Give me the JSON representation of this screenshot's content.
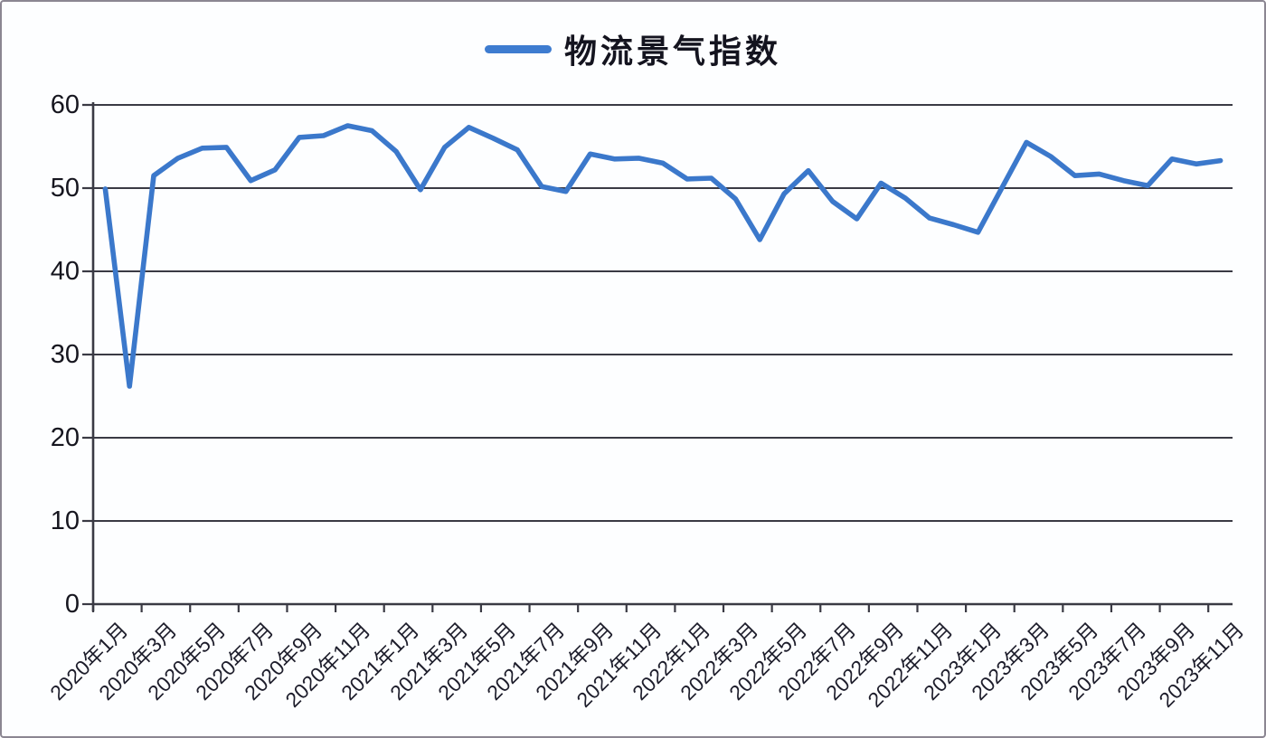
{
  "legend": {
    "label": "物流景气指数"
  },
  "chart_data": {
    "type": "line",
    "title": "",
    "series": [
      {
        "name": "物流景气指数",
        "values": [
          49.9,
          26.2,
          51.5,
          53.6,
          54.8,
          54.9,
          50.9,
          52.2,
          56.1,
          56.3,
          57.5,
          56.9,
          54.4,
          49.8,
          54.9,
          57.3,
          56.0,
          54.6,
          50.2,
          49.6,
          54.1,
          53.5,
          53.6,
          53.0,
          51.1,
          51.2,
          48.7,
          43.8,
          49.3,
          52.1,
          48.4,
          46.3,
          50.6,
          48.8,
          46.4,
          45.6,
          44.7,
          50.1,
          55.5,
          53.8,
          51.5,
          51.7,
          50.9,
          50.3,
          53.5,
          52.9,
          53.3
        ]
      }
    ],
    "x": [
      "2020年1月",
      "2020年2月",
      "2020年3月",
      "2020年4月",
      "2020年5月",
      "2020年6月",
      "2020年7月",
      "2020年8月",
      "2020年9月",
      "2020年10月",
      "2020年11月",
      "2020年12月",
      "2021年1月",
      "2021年2月",
      "2021年3月",
      "2021年4月",
      "2021年5月",
      "2021年6月",
      "2021年7月",
      "2021年8月",
      "2021年9月",
      "2021年10月",
      "2021年11月",
      "2021年12月",
      "2022年1月",
      "2022年2月",
      "2022年3月",
      "2022年4月",
      "2022年5月",
      "2022年6月",
      "2022年7月",
      "2022年8月",
      "2022年9月",
      "2022年10月",
      "2022年11月",
      "2022年12月",
      "2023年1月",
      "2023年2月",
      "2023年3月",
      "2023年4月",
      "2023年5月",
      "2023年6月",
      "2023年7月",
      "2023年8月",
      "2023年9月",
      "2023年10月",
      "2023年11月"
    ],
    "xtick_labels": [
      "2020年1月",
      "2020年3月",
      "2020年5月",
      "2020年7月",
      "2020年9月",
      "2020年11月",
      "2021年1月",
      "2021年3月",
      "2021年5月",
      "2021年7月",
      "2021年9月",
      "2021年11月",
      "2022年1月",
      "2022年3月",
      "2022年5月",
      "2022年7月",
      "2022年9月",
      "2022年11月",
      "2023年1月",
      "2023年3月",
      "2023年5月",
      "2023年7月",
      "2023年9月",
      "2023年11月"
    ],
    "xtick_every": 2,
    "yticks": [
      0,
      10,
      20,
      30,
      40,
      50,
      60
    ],
    "ylim": [
      0,
      60
    ],
    "grid": "horizontal",
    "legend_position": "top-center",
    "x_label_rotation_deg": 45,
    "line_color": "#3b78cb",
    "axis_color": "#3a3a44",
    "text_color": "#16161f",
    "background_color": "#fdfeff"
  }
}
